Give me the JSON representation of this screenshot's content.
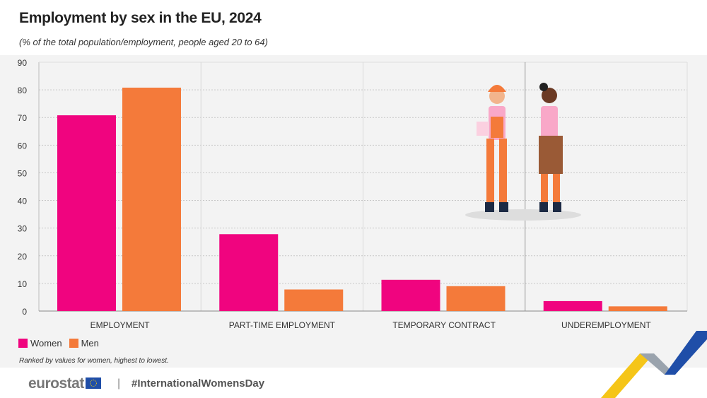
{
  "header": {
    "title": "Employment by sex in the EU, 2024",
    "subtitle": "(% of the total population/employment, people aged 20 to 64)"
  },
  "chart_data": {
    "type": "bar",
    "title": "Employment by sex in the EU, 2024",
    "categories": [
      "EMPLOYMENT",
      "PART-TIME EMPLOYMENT",
      "TEMPORARY CONTRACT",
      "UNDEREMPLOYMENT"
    ],
    "series": [
      {
        "name": "Women",
        "color": "#f0047f",
        "values": [
          70.8,
          27.8,
          11.3,
          3.6
        ]
      },
      {
        "name": "Men",
        "color": "#f47a3a",
        "values": [
          80.8,
          7.8,
          9.0,
          1.7
        ]
      }
    ],
    "ylim": [
      0,
      90
    ],
    "yticks": [
      0,
      10,
      20,
      30,
      40,
      50,
      60,
      70,
      80,
      90
    ],
    "grid": true,
    "legend": "bottom-left"
  },
  "note": "Ranked by values for women, highest to lowest.",
  "footer": {
    "logo": "eurostat",
    "hashtag": "#InternationalWomensDay",
    "separator": "|"
  }
}
